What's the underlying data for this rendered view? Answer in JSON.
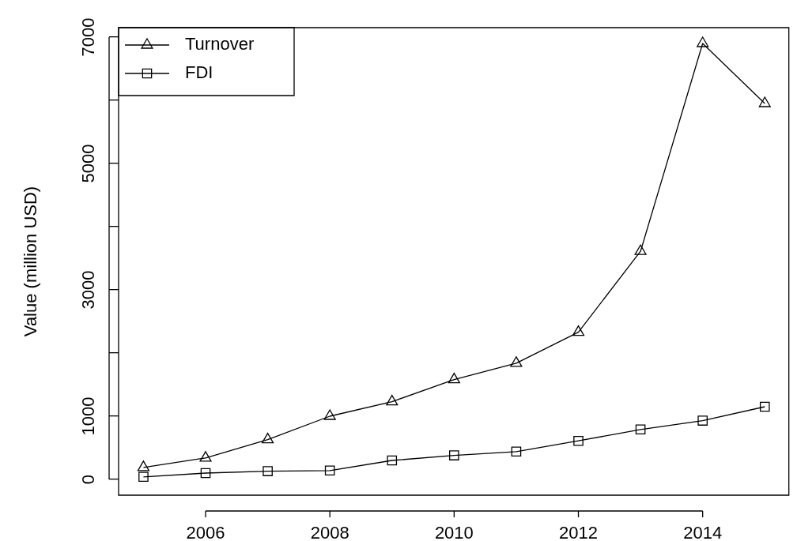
{
  "chart_data": {
    "type": "line",
    "ylabel": "Value (million USD)",
    "x": [
      2005,
      2006,
      2007,
      2008,
      2009,
      2010,
      2011,
      2012,
      2013,
      2014,
      2015
    ],
    "series": [
      {
        "name": "Turnover",
        "color": "#000000",
        "marker": "triangle",
        "values": [
          190,
          340,
          630,
          1000,
          1230,
          1580,
          1840,
          2330,
          3610,
          6900,
          5950
        ]
      },
      {
        "name": "FDI",
        "color": "#000000",
        "marker": "square",
        "values": [
          40,
          100,
          130,
          140,
          300,
          380,
          440,
          610,
          790,
          930,
          1150
        ]
      }
    ],
    "xlim": [
      2004.6,
      2015.4
    ],
    "xticks": [
      2006,
      2008,
      2010,
      2012,
      2014
    ],
    "ylim": [
      -250,
      7150
    ],
    "yticks": [
      0,
      1000,
      {
        "value": 2000,
        "label": null
      },
      3000,
      {
        "value": 4000,
        "label": null
      },
      5000,
      {
        "value": 6000,
        "label": null
      },
      7000
    ],
    "legend": "top left",
    "grid": false,
    "line_style": "solid"
  }
}
